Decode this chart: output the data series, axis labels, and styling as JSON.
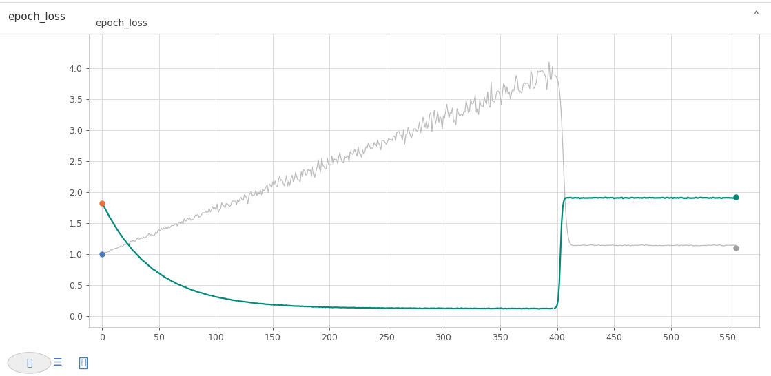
{
  "title": "epoch_loss",
  "ylabel": "epoch_loss",
  "background_color": "#ffffff",
  "plot_bg_color": "#ffffff",
  "grid_color": "#dddddd",
  "xlim": [
    -12,
    578
  ],
  "ylim": [
    -0.18,
    4.55
  ],
  "yticks": [
    0,
    0.5,
    1,
    1.5,
    2,
    2.5,
    3,
    3.5,
    4
  ],
  "xticks": [
    0,
    50,
    100,
    150,
    200,
    250,
    300,
    350,
    400,
    450,
    500,
    550
  ],
  "train_color": "#00897b",
  "val_color": "#bdbdbd",
  "marker_orange": "#e8703a",
  "marker_blue": "#4a7abf",
  "marker_teal": "#00897b",
  "marker_gray": "#9e9e9e",
  "phase1_end": 396,
  "phase2_start": 398,
  "phase2_end": 557,
  "train_start_val": 1.82,
  "train_phase1_end_val": 0.12,
  "train_phase2_plateau": 1.91,
  "train_phase2_end_val": 1.92,
  "val_phase1_start": 1.0,
  "val_phase1_end": 3.9,
  "val_phase2_plateau": 1.12,
  "val_phase2_end_val": 1.1
}
